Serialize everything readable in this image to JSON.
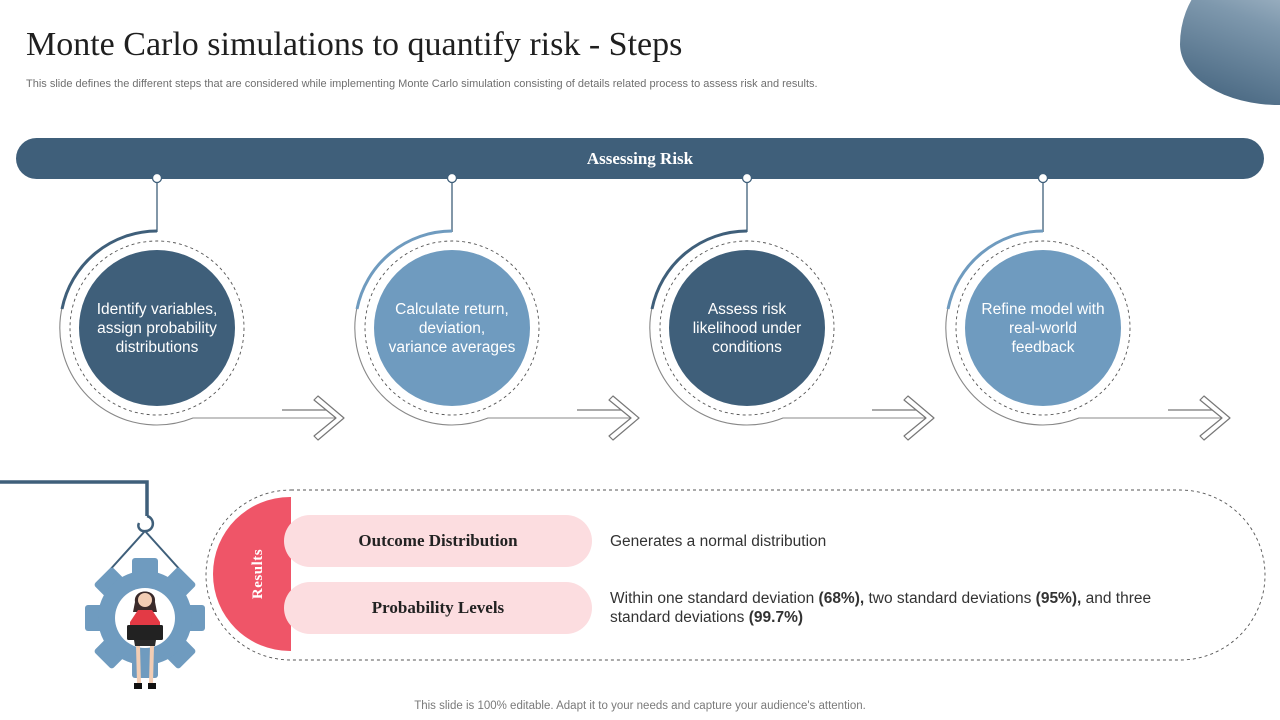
{
  "header": {
    "title": "Monte Carlo simulations to quantify risk - Steps",
    "subtitle": "This slide defines the different steps that are considered while implementing Monte Carlo simulation consisting of details related process to assess risk and results."
  },
  "banner": {
    "label": "Assessing Risk"
  },
  "steps": [
    {
      "text": "Identify variables, assign probability distributions",
      "tone": "dark"
    },
    {
      "text": "Calculate return, deviation, variance averages",
      "tone": "light"
    },
    {
      "text": "Assess risk likelihood under conditions",
      "tone": "dark"
    },
    {
      "text": "Refine model with real-world feedback",
      "tone": "light"
    }
  ],
  "results": {
    "tab_label": "Results",
    "rows": [
      {
        "label": "Outcome Distribution",
        "description": {
          "pre": "Generates a normal distribution"
        }
      },
      {
        "label": "Probability Levels",
        "description": {
          "pre": "Within one standard deviation ",
          "v1": "(68%),",
          "mid1": " two standard deviations ",
          "v2": "(95%),",
          "mid2": " and three standard deviations ",
          "v3": "(99.7%)"
        }
      }
    ]
  },
  "footer": {
    "text": "This slide is 100% editable. Adapt it to your needs and capture your audience's attention."
  },
  "colors": {
    "primary": "#3f5f7a",
    "secondary": "#6f9bbf",
    "accent": "#ef5568",
    "pill": "#fcdde0"
  },
  "icons": {
    "gear": "gear-icon",
    "person": "person-with-laptop-icon",
    "arrow": "arrow-right-icon"
  }
}
